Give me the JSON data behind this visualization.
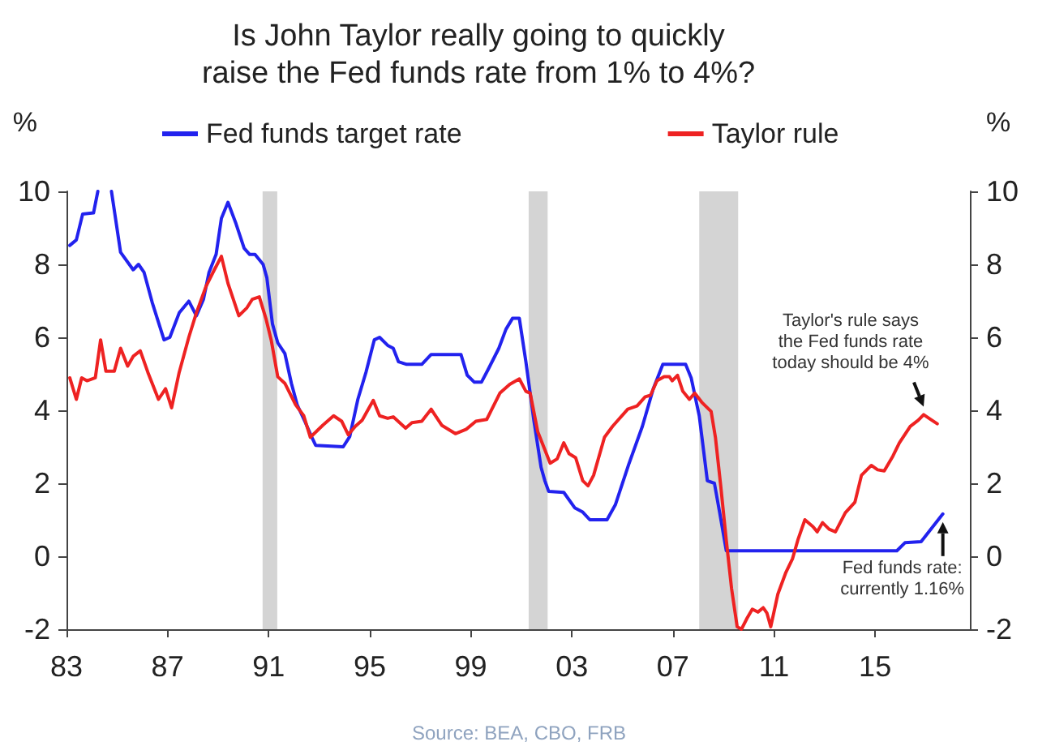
{
  "chart_data": {
    "type": "line",
    "title": "Is John Taylor really going to quickly\nraise the Fed funds rate from 1% to 4%?",
    "ylabel": "%",
    "y2label": "%",
    "xlim": [
      1983,
      2018.75
    ],
    "xticks": [
      {
        "value": 1983,
        "label": "83"
      },
      {
        "value": 1987,
        "label": "87"
      },
      {
        "value": 1991,
        "label": "91"
      },
      {
        "value": 1995,
        "label": "95"
      },
      {
        "value": 1999,
        "label": "99"
      },
      {
        "value": 2003,
        "label": "03"
      },
      {
        "value": 2007,
        "label": "07"
      },
      {
        "value": 2011,
        "label": "11"
      },
      {
        "value": 2015,
        "label": "15"
      }
    ],
    "ylim": [
      -2,
      10
    ],
    "yticks": [
      -2,
      0,
      2,
      4,
      6,
      8,
      10
    ],
    "y2lim": [
      -2,
      10
    ],
    "y2ticks": [
      -2,
      0,
      2,
      4,
      6,
      8,
      10
    ],
    "legend": "top",
    "marker": "none",
    "line_style": "solid",
    "series": [
      {
        "name": "Fed funds target rate",
        "color": "#2222ee",
        "x": [
          1983.13,
          1983.39,
          1983.64,
          1984.07,
          1984.24,
          1984.5,
          1984.78,
          1985.14,
          1985.64,
          1985.85,
          1986.07,
          1986.39,
          1986.86,
          1987.09,
          1987.46,
          1987.84,
          1988.14,
          1988.42,
          1988.64,
          1988.92,
          1989.13,
          1989.39,
          1989.71,
          1990.03,
          1990.25,
          1990.46,
          1990.78,
          1990.93,
          1991.15,
          1991.36,
          1991.64,
          1991.9,
          1992.13,
          1992.43,
          1992.71,
          1992.86,
          1993.95,
          1994.21,
          1994.53,
          1994.85,
          1995.18,
          1995.39,
          1995.71,
          1995.93,
          1996.14,
          1996.46,
          1997.06,
          1997.43,
          1998.61,
          1998.86,
          1999.14,
          1999.42,
          1999.68,
          2000.11,
          2000.39,
          2000.65,
          2000.92,
          2001.18,
          2001.5,
          2001.78,
          2001.93,
          2002.08,
          2002.68,
          2003.11,
          2003.43,
          2003.71,
          2004.39,
          2004.72,
          2005.25,
          2005.79,
          2006.22,
          2006.6,
          2007.5,
          2007.72,
          2008.04,
          2008.36,
          2008.64,
          2008.85,
          2009.11,
          2015.86,
          2016.18,
          2016.82,
          2017.68
        ],
        "values": [
          8.52,
          8.67,
          9.38,
          9.41,
          10,
          null,
          10,
          8.33,
          7.85,
          8.0,
          7.78,
          6.96,
          5.93,
          6.0,
          6.67,
          6.99,
          6.59,
          7.04,
          7.78,
          8.27,
          9.26,
          9.7,
          9.11,
          8.44,
          8.27,
          8.27,
          8.0,
          7.63,
          6.37,
          5.85,
          5.56,
          4.74,
          4.15,
          3.7,
          3.26,
          3.04,
          3.0,
          3.28,
          4.3,
          5.04,
          5.93,
          6.0,
          5.78,
          5.7,
          5.33,
          5.26,
          5.26,
          5.53,
          5.53,
          4.96,
          4.77,
          4.77,
          5.11,
          5.7,
          6.22,
          6.52,
          6.52,
          5.33,
          3.7,
          2.44,
          2.07,
          1.78,
          1.75,
          1.33,
          1.21,
          1.0,
          1.0,
          1.41,
          2.52,
          3.56,
          4.59,
          5.26,
          5.26,
          4.89,
          3.85,
          2.07,
          2.0,
          1.19,
          0.15,
          0.15,
          0.37,
          0.4,
          1.16
        ]
      },
      {
        "name": "Taylor rule",
        "color": "#ee2222",
        "x": [
          1983.13,
          1983.39,
          1983.6,
          1983.81,
          1984.14,
          1984.35,
          1984.56,
          1984.89,
          1985.14,
          1985.42,
          1985.64,
          1985.92,
          1986.22,
          1986.64,
          1986.92,
          1987.16,
          1987.46,
          1987.84,
          1988.14,
          1988.53,
          1988.85,
          1989.13,
          1989.39,
          1989.82,
          1990.14,
          1990.35,
          1990.63,
          1990.89,
          1991.1,
          1991.36,
          1991.64,
          1992.07,
          1992.39,
          1992.65,
          1993.14,
          1993.57,
          1993.89,
          1994.15,
          1994.43,
          1994.7,
          1995.14,
          1995.39,
          1995.71,
          1995.93,
          1996.42,
          1996.67,
          1997.06,
          1997.43,
          1997.85,
          1998.39,
          1998.82,
          1999.2,
          1999.63,
          2000.15,
          2000.54,
          2000.92,
          2001.18,
          2001.35,
          2001.65,
          2002.14,
          2002.42,
          2002.68,
          2002.89,
          2003.15,
          2003.43,
          2003.64,
          2003.86,
          2004.29,
          2004.61,
          2005.21,
          2005.58,
          2005.9,
          2006.11,
          2006.37,
          2006.65,
          2006.86,
          2006.97,
          2007.18,
          2007.39,
          2007.65,
          2007.86,
          2008.14,
          2008.36,
          2008.51,
          2008.68,
          2008.89,
          2009.11,
          2009.32,
          2009.54,
          2009.71,
          2009.93,
          2010.14,
          2010.36,
          2010.57,
          2010.72,
          2010.87,
          2011.15,
          2011.47,
          2011.73,
          2011.94,
          2012.22,
          2012.54,
          2012.71,
          2012.92,
          2013.18,
          2013.43,
          2013.82,
          2014.2,
          2014.46,
          2014.85,
          2015.1,
          2015.36,
          2015.7,
          2015.96,
          2016.39,
          2016.71,
          2016.92,
          2017.24,
          2017.46
        ],
        "values": [
          4.89,
          4.3,
          4.89,
          4.81,
          4.89,
          5.93,
          5.07,
          5.07,
          5.7,
          5.21,
          5.48,
          5.63,
          5.04,
          4.3,
          4.59,
          4.07,
          5.04,
          6.0,
          6.67,
          7.41,
          7.85,
          8.22,
          7.48,
          6.59,
          6.81,
          7.04,
          7.11,
          6.52,
          5.93,
          4.92,
          4.74,
          4.15,
          3.85,
          3.26,
          3.59,
          3.85,
          3.7,
          3.33,
          3.56,
          3.73,
          4.27,
          3.85,
          3.78,
          3.82,
          3.51,
          3.66,
          3.7,
          4.03,
          3.59,
          3.36,
          3.48,
          3.7,
          3.75,
          4.47,
          4.71,
          4.86,
          4.52,
          4.47,
          3.41,
          2.55,
          2.67,
          3.11,
          2.81,
          2.7,
          2.07,
          1.93,
          2.22,
          3.26,
          3.56,
          4.03,
          4.12,
          4.37,
          4.41,
          4.81,
          4.92,
          4.92,
          4.81,
          4.96,
          4.52,
          4.3,
          4.47,
          4.22,
          4.07,
          3.97,
          3.26,
          1.93,
          0.44,
          -0.89,
          -1.93,
          -2.0,
          -1.7,
          -1.45,
          -1.53,
          -1.41,
          -1.56,
          -1.93,
          -1.04,
          -0.44,
          -0.07,
          0.44,
          1.0,
          0.81,
          0.67,
          0.92,
          0.74,
          0.67,
          1.19,
          1.48,
          2.22,
          2.49,
          2.37,
          2.34,
          2.74,
          3.11,
          3.56,
          3.73,
          3.88,
          3.73,
          3.63
        ]
      }
    ],
    "bands": [
      {
        "axis": "x",
        "from": 1990.76,
        "to": 1991.34,
        "color": "#d4d4d4"
      },
      {
        "axis": "x",
        "from": 2001.29,
        "to": 2002.04,
        "color": "#d4d4d4"
      },
      {
        "axis": "x",
        "from": 2008.04,
        "to": 2009.58,
        "color": "#d4d4d4"
      }
    ],
    "annotations": [
      {
        "text": "Taylor's rule says\nthe Fed funds rate\ntoday should be 4%",
        "x": 2016.92,
        "y": 3.88
      },
      {
        "text": "Fed funds rate:\ncurrently 1.16%",
        "x": 2017.68,
        "y": 1.16
      },
      "Source: BEA, CBO, FRB"
    ]
  }
}
